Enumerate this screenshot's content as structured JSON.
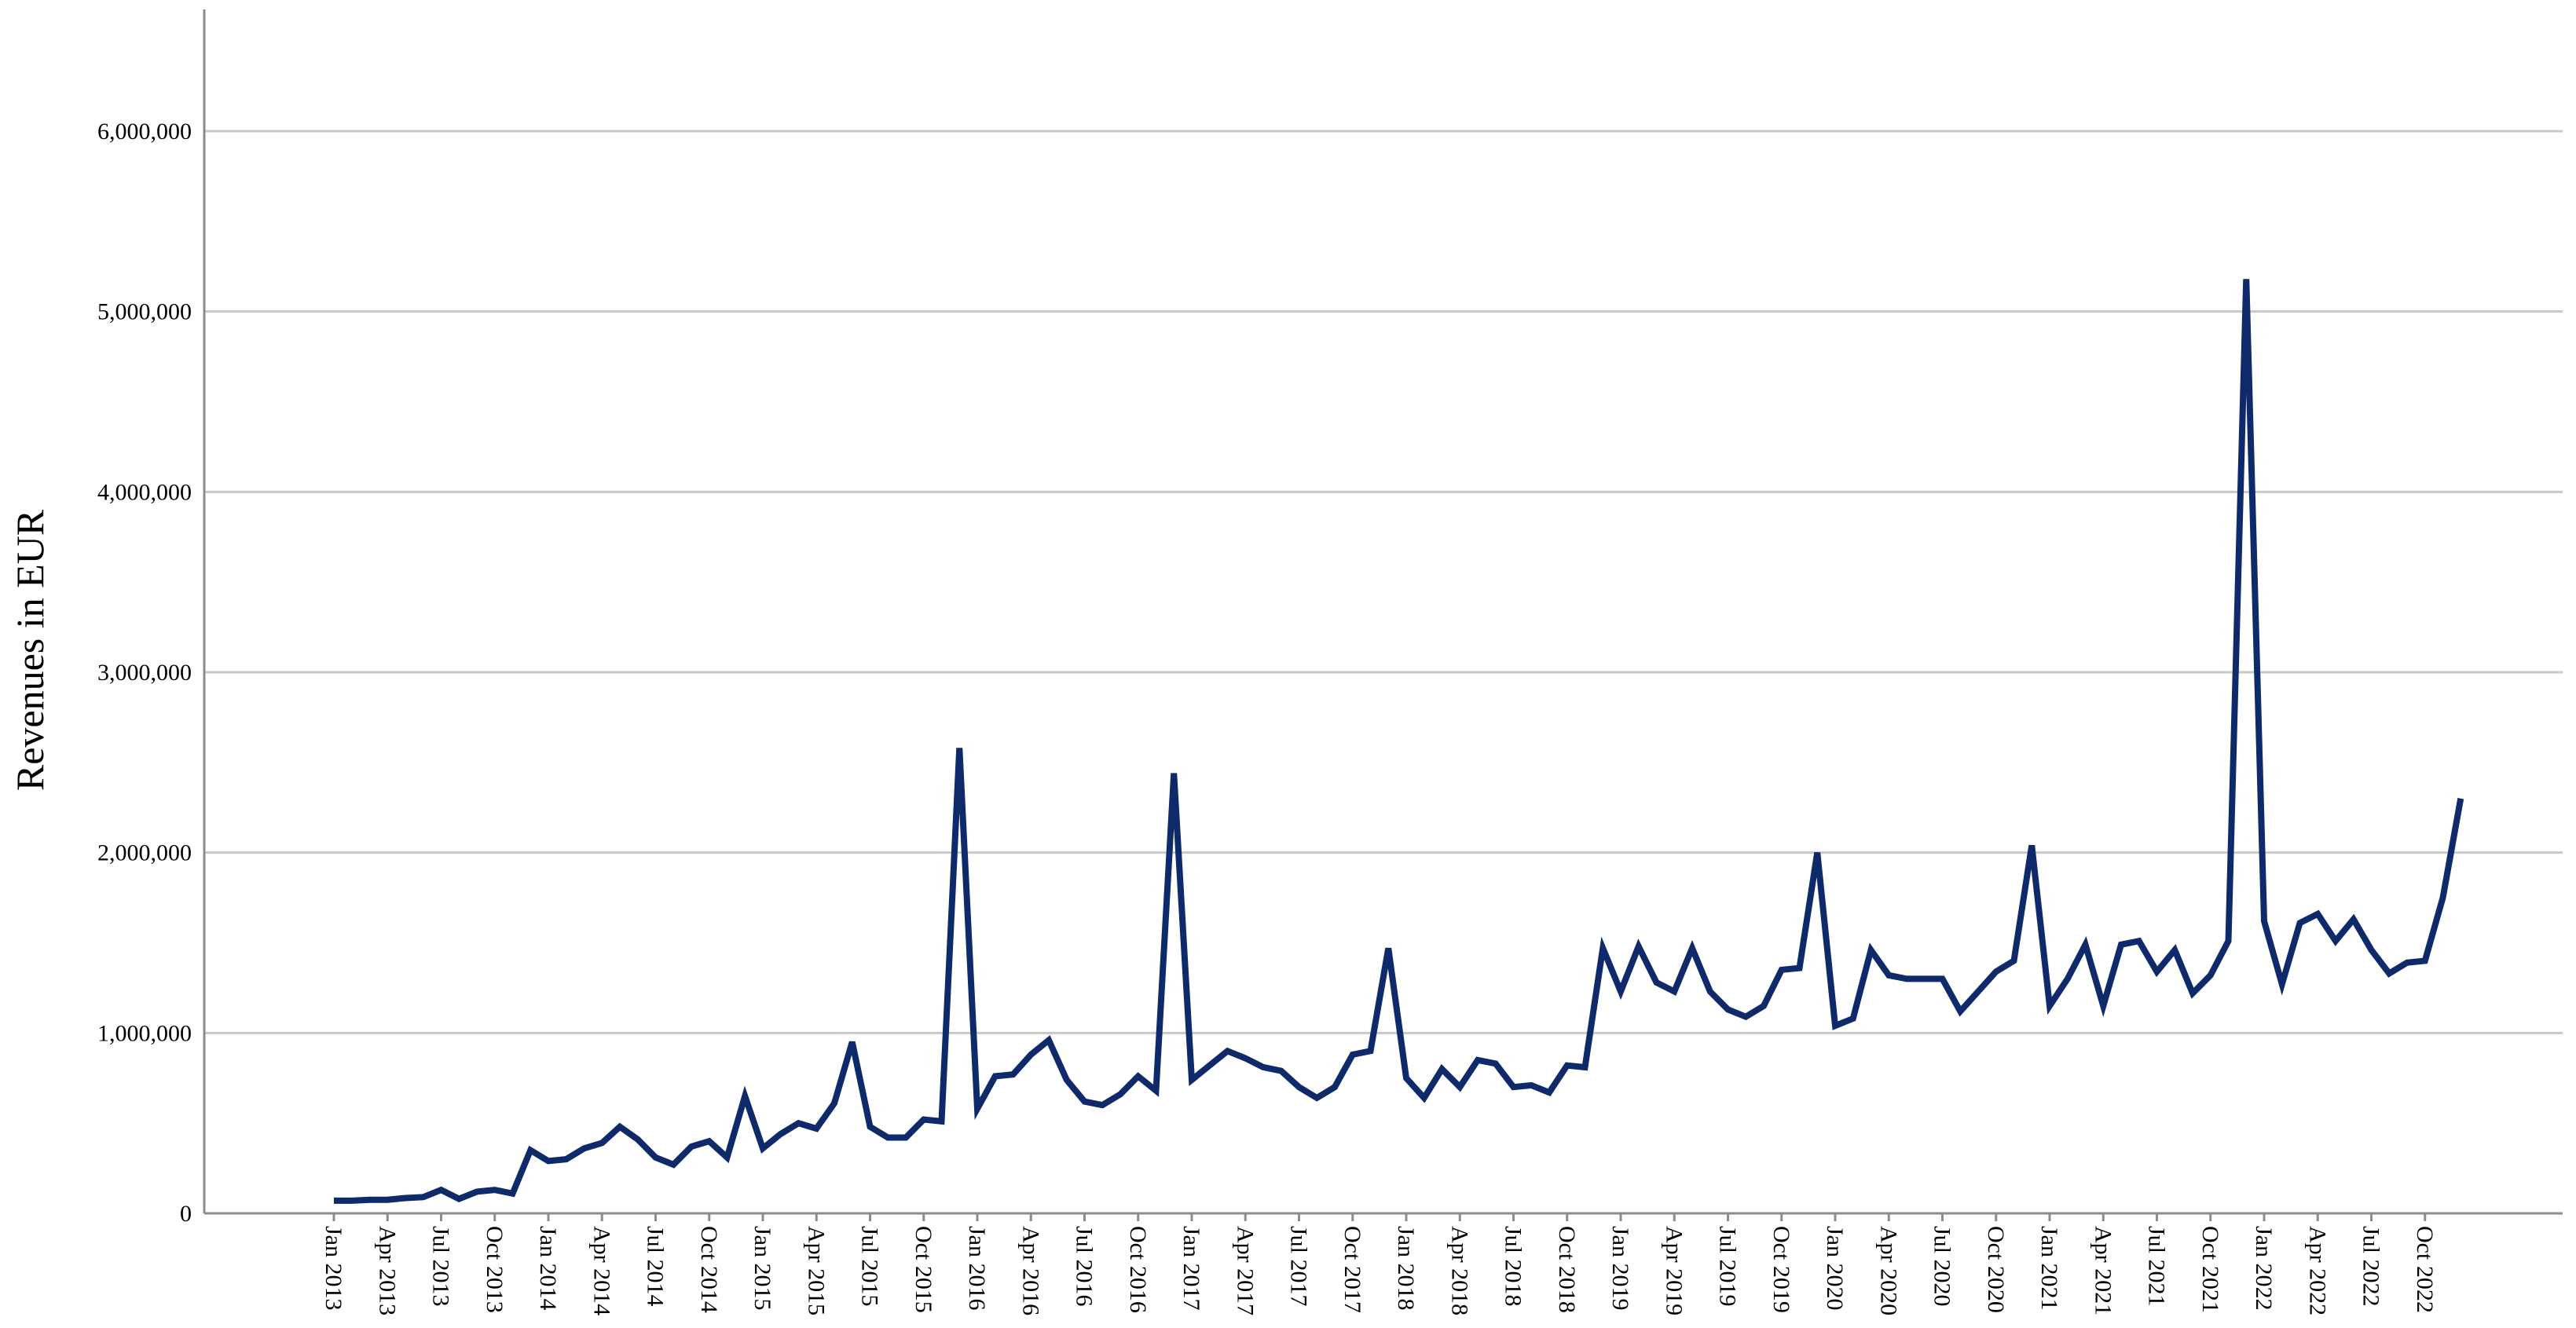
{
  "chart_data": {
    "type": "line",
    "title": "",
    "xlabel": "",
    "ylabel": "Revenues in EUR",
    "ylim": [
      0,
      6600000
    ],
    "grid": true,
    "y_ticks": [
      0,
      1000000,
      2000000,
      3000000,
      4000000,
      5000000,
      6000000
    ],
    "y_tick_labels": [
      "0",
      "1,000,000",
      "2,000,000",
      "3,000,000",
      "4,000,000",
      "5,000,000",
      "6,000,000"
    ],
    "x_tick_labels": [
      "Jan 2013",
      "Apr 2013",
      "Jul 2013",
      "Oct 2013",
      "Jan 2014",
      "Apr 2014",
      "Jul 2014",
      "Oct 2014",
      "Jan 2015",
      "Apr 2015",
      "Jul 2015",
      "Oct 2015",
      "Jan 2016",
      "Apr 2016",
      "Jul 2016",
      "Oct 2016",
      "Jan 2017",
      "Apr 2017",
      "Jul 2017",
      "Oct 2017",
      "Jan 2018",
      "Apr 2018",
      "Jul 2018",
      "Oct 2018",
      "Jan 2019",
      "Apr 2019",
      "Jul 2019",
      "Oct 2019",
      "Jan 2020",
      "Apr 2020",
      "Jul 2020",
      "Oct 2020",
      "Jan 2021",
      "Apr 2021",
      "Jul 2021",
      "Oct 2021",
      "Jan 2022",
      "Apr 2022",
      "Jul 2022",
      "Oct 2022"
    ],
    "line_color": "#0f2a6b",
    "series": [
      {
        "values": [
          70000,
          70000,
          75000,
          75000,
          85000,
          90000,
          130000,
          80000,
          120000,
          130000,
          110000,
          350000,
          290000,
          300000,
          360000,
          390000,
          480000,
          410000,
          310000,
          270000,
          370000,
          400000,
          310000,
          650000,
          360000,
          440000,
          500000,
          470000,
          610000,
          950000,
          480000,
          420000,
          420000,
          520000,
          510000,
          2580000,
          580000,
          760000,
          770000,
          880000,
          960000,
          740000,
          620000,
          600000,
          660000,
          760000,
          680000,
          2440000,
          740000,
          820000,
          900000,
          860000,
          810000,
          790000,
          700000,
          640000,
          700000,
          880000,
          900000,
          1470000,
          750000,
          640000,
          800000,
          700000,
          850000,
          830000,
          700000,
          710000,
          670000,
          820000,
          810000,
          1470000,
          1230000,
          1480000,
          1280000,
          1230000,
          1470000,
          1230000,
          1130000,
          1090000,
          1150000,
          1350000,
          1360000,
          2000000,
          1040000,
          1080000,
          1460000,
          1320000,
          1300000,
          1300000,
          1300000,
          1120000,
          1230000,
          1340000,
          1400000,
          2040000,
          1150000,
          1300000,
          1490000,
          1150000,
          1490000,
          1510000,
          1340000,
          1460000,
          1220000,
          1320000,
          1510000,
          5180000,
          1620000,
          1270000,
          1610000,
          1660000,
          1510000,
          1630000,
          1460000,
          1330000,
          1390000,
          1400000,
          1750000,
          2300000
        ]
      }
    ]
  }
}
